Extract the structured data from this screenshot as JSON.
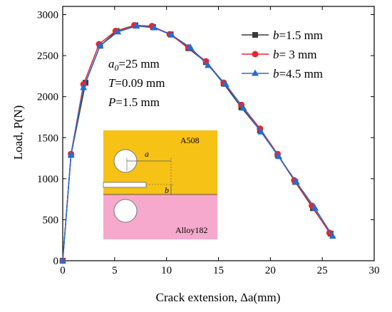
{
  "chart_data": {
    "type": "line",
    "title": "",
    "xlabel": "Crack extension, Δa(mm)",
    "ylabel": "Load, P(N)",
    "xlim": [
      0,
      30
    ],
    "ylim": [
      0,
      3100
    ],
    "x_ticks": [
      0,
      5,
      10,
      15,
      20,
      25,
      30
    ],
    "y_ticks": [
      0,
      500,
      1000,
      1500,
      2000,
      2500,
      3000
    ],
    "grid": false,
    "legend_position": "top-right",
    "legend": [
      {
        "prefix": "b",
        "text": "=1.5 mm"
      },
      {
        "prefix": "b",
        "text": "= 3   mm"
      },
      {
        "prefix": "b",
        "text": "=4.5 mm"
      }
    ],
    "parameters": [
      {
        "sym": "a",
        "sub": "0",
        "text": "=25 mm"
      },
      {
        "sym": "T",
        "sub": "",
        "text": "=0.09 mm"
      },
      {
        "sym": "P",
        "sub": "",
        "text": "=1.5 mm"
      }
    ],
    "inset_labels": {
      "top_material": "A508",
      "bottom_material": "Alloy182",
      "dim_a": "a",
      "dim_b": "b"
    },
    "series": [
      {
        "name": "b=1.5 mm",
        "color": "#3a3a3a",
        "marker": "square",
        "x": [
          0,
          0.8,
          2.2,
          3.6,
          5.2,
          7.0,
          8.7,
          10.4,
          12.1,
          13.8,
          15.5,
          17.2,
          19.0,
          20.7,
          22.4,
          24.1,
          25.8
        ],
        "y": [
          0,
          1290,
          2170,
          2620,
          2800,
          2870,
          2850,
          2760,
          2590,
          2420,
          2160,
          1870,
          1590,
          1290,
          960,
          640,
          330
        ]
      },
      {
        "name": "b=3 mm",
        "color": "#e8252b",
        "marker": "circle",
        "x": [
          0,
          0.8,
          2.0,
          3.5,
          5.1,
          6.9,
          8.6,
          10.3,
          12.1,
          13.8,
          15.5,
          17.2,
          19.0,
          20.7,
          22.3,
          24.0,
          25.7
        ],
        "y": [
          0,
          1300,
          2150,
          2640,
          2800,
          2870,
          2860,
          2760,
          2600,
          2430,
          2170,
          1900,
          1610,
          1300,
          980,
          670,
          340
        ]
      },
      {
        "name": "b=4.5 mm",
        "color": "#1f6fd6",
        "marker": "triangle",
        "x": [
          0,
          0.8,
          2.0,
          3.6,
          5.3,
          7.1,
          8.8,
          10.5,
          12.3,
          14.0,
          15.7,
          17.4,
          19.1,
          20.8,
          22.5,
          24.3,
          26.0
        ],
        "y": [
          0,
          1290,
          2110,
          2620,
          2790,
          2860,
          2840,
          2750,
          2600,
          2380,
          2150,
          1860,
          1570,
          1270,
          960,
          640,
          300
        ]
      }
    ]
  }
}
